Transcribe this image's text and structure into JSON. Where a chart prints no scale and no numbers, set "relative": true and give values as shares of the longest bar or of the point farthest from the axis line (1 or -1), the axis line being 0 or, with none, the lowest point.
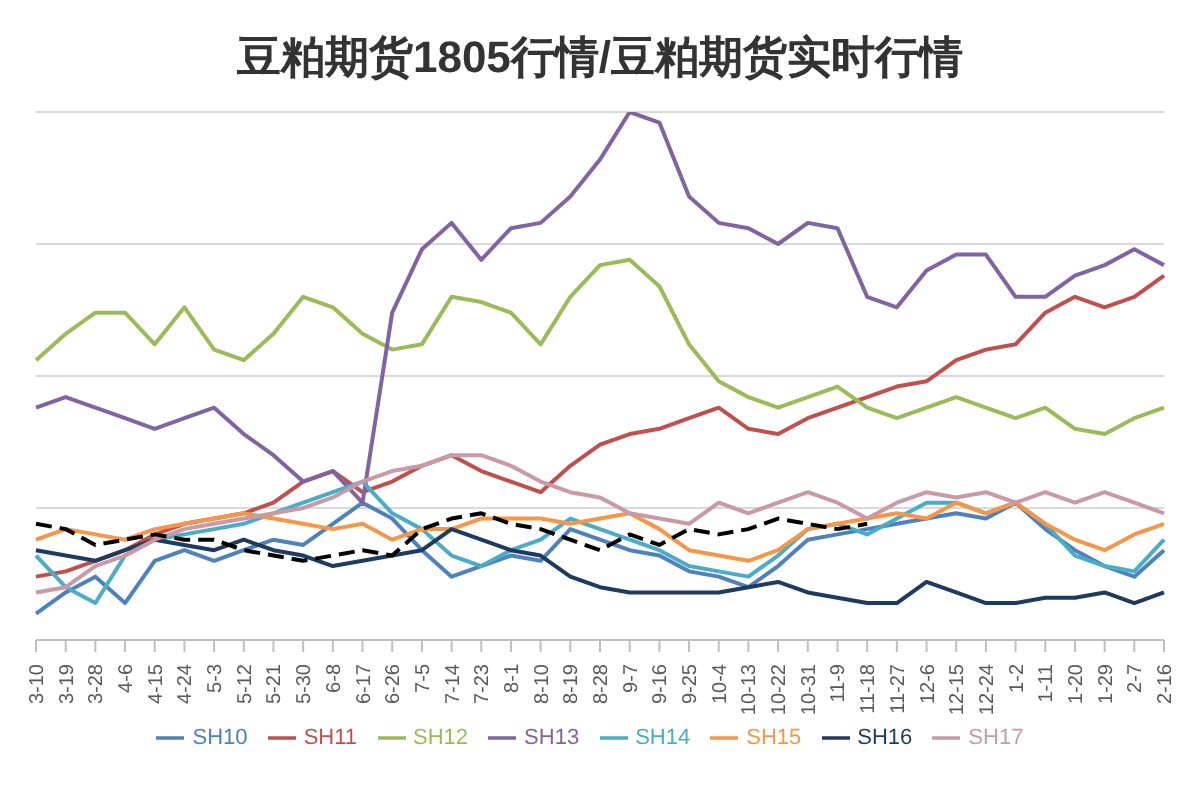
{
  "chart_data": {
    "type": "line",
    "title": "豆粕期货1805行情/豆粕期货实时行情",
    "relative": true,
    "grid": "y",
    "legend": "bottom",
    "marker": "none",
    "categories": [
      "3-10",
      "3-19",
      "3-28",
      "4-6",
      "4-15",
      "4-24",
      "5-3",
      "5-12",
      "5-21",
      "5-30",
      "6-8",
      "6-17",
      "6-26",
      "7-5",
      "7-14",
      "7-23",
      "8-1",
      "8-10",
      "8-19",
      "8-28",
      "9-7",
      "9-16",
      "9-25",
      "10-4",
      "10-13",
      "10-22",
      "10-31",
      "11-9",
      "11-18",
      "11-27",
      "12-6",
      "12-15",
      "12-24",
      "1-2",
      "1-11",
      "1-20",
      "1-29",
      "2-7",
      "2-16"
    ],
    "series": [
      {
        "name": "SH10",
        "color": "#4f81bd",
        "values": [
          0.05,
          0.09,
          0.12,
          0.07,
          0.15,
          0.17,
          0.15,
          0.17,
          0.19,
          0.18,
          0.22,
          0.26,
          0.23,
          0.17,
          0.12,
          0.14,
          0.16,
          0.15,
          0.21,
          0.19,
          0.17,
          0.16,
          0.13,
          0.12,
          0.1,
          0.14,
          0.19,
          0.2,
          0.21,
          0.22,
          0.23,
          0.24,
          0.23,
          0.26,
          0.21,
          0.17,
          0.14,
          0.12,
          0.17
        ]
      },
      {
        "name": "SH11",
        "color": "#c0504d",
        "values": [
          0.12,
          0.13,
          0.15,
          0.17,
          0.2,
          0.22,
          0.23,
          0.24,
          0.26,
          0.3,
          0.32,
          0.28,
          0.3,
          0.33,
          0.35,
          0.32,
          0.3,
          0.28,
          0.33,
          0.37,
          0.39,
          0.4,
          0.42,
          0.44,
          0.4,
          0.39,
          0.42,
          0.44,
          0.46,
          0.48,
          0.49,
          0.53,
          0.55,
          0.56,
          0.62,
          0.65,
          0.63,
          0.65,
          0.69
        ]
      },
      {
        "name": "SH12",
        "color": "#9bbb59",
        "values": [
          0.53,
          0.58,
          0.62,
          0.62,
          0.56,
          0.63,
          0.55,
          0.53,
          0.58,
          0.65,
          0.63,
          0.58,
          0.55,
          0.56,
          0.65,
          0.64,
          0.62,
          0.56,
          0.65,
          0.71,
          0.72,
          0.67,
          0.56,
          0.49,
          0.46,
          0.44,
          0.46,
          0.48,
          0.44,
          0.42,
          0.44,
          0.46,
          0.44,
          0.42,
          0.44,
          0.4,
          0.39,
          0.42,
          0.44
        ]
      },
      {
        "name": "SH13",
        "color": "#8064a2",
        "values": [
          0.44,
          0.46,
          0.44,
          0.42,
          0.4,
          0.42,
          0.44,
          0.39,
          0.35,
          0.3,
          0.32,
          0.26,
          0.62,
          0.74,
          0.79,
          0.72,
          0.78,
          0.79,
          0.84,
          0.91,
          1,
          0.98,
          0.84,
          0.79,
          0.78,
          0.75,
          0.79,
          0.78,
          0.65,
          0.63,
          0.7,
          0.73,
          0.73,
          0.65,
          0.65,
          0.69,
          0.71,
          0.74,
          0.71
        ]
      },
      {
        "name": "SH14",
        "color": "#4bacc6",
        "values": [
          0.16,
          0.1,
          0.07,
          0.16,
          0.19,
          0.2,
          0.21,
          0.22,
          0.24,
          0.26,
          0.28,
          0.3,
          0.24,
          0.21,
          0.16,
          0.14,
          0.17,
          0.19,
          0.23,
          0.21,
          0.19,
          0.17,
          0.14,
          0.13,
          0.12,
          0.16,
          0.21,
          0.22,
          0.2,
          0.23,
          0.26,
          0.26,
          0.24,
          0.26,
          0.22,
          0.16,
          0.14,
          0.13,
          0.19
        ]
      },
      {
        "name": "SH15",
        "color": "#f79646",
        "values": [
          0.19,
          0.21,
          0.2,
          0.19,
          0.21,
          0.22,
          0.23,
          0.24,
          0.23,
          0.22,
          0.21,
          0.22,
          0.19,
          0.21,
          0.21,
          0.23,
          0.23,
          0.23,
          0.22,
          0.23,
          0.24,
          0.21,
          0.17,
          0.16,
          0.15,
          0.17,
          0.21,
          0.22,
          0.23,
          0.24,
          0.23,
          0.26,
          0.24,
          0.26,
          0.22,
          0.19,
          0.17,
          0.2,
          0.22
        ]
      },
      {
        "name": "SH16",
        "color": "#1f3a5f",
        "values": [
          0.17,
          0.16,
          0.15,
          0.17,
          0.19,
          0.18,
          0.17,
          0.19,
          0.17,
          0.16,
          0.14,
          0.15,
          0.16,
          0.17,
          0.21,
          0.19,
          0.17,
          0.16,
          0.12,
          0.1,
          0.09,
          0.09,
          0.09,
          0.09,
          0.1,
          0.11,
          0.09,
          0.08,
          0.07,
          0.07,
          0.11,
          0.09,
          0.07,
          0.07,
          0.08,
          0.08,
          0.09,
          0.07,
          0.09
        ]
      },
      {
        "name": "SH17",
        "color": "#c99aa6",
        "values": [
          0.09,
          0.1,
          0.14,
          0.16,
          0.19,
          0.21,
          0.22,
          0.23,
          0.24,
          0.25,
          0.27,
          0.3,
          0.32,
          0.33,
          0.35,
          0.35,
          0.33,
          0.3,
          0.28,
          0.27,
          0.24,
          0.23,
          0.22,
          0.26,
          0.24,
          0.26,
          0.28,
          0.26,
          0.23,
          0.26,
          0.28,
          0.27,
          0.28,
          0.26,
          0.28,
          0.26,
          0.28,
          0.26,
          0.24
        ]
      },
      {
        "color": "#000000",
        "line_style": "dashed",
        "values": [
          0.22,
          0.21,
          0.18,
          0.19,
          0.2,
          0.19,
          0.19,
          0.17,
          0.16,
          0.15,
          0.16,
          0.17,
          0.16,
          0.21,
          0.23,
          0.24,
          0.22,
          0.21,
          0.19,
          0.17,
          0.2,
          0.18,
          0.21,
          0.2,
          0.21,
          0.23,
          0.22,
          0.21,
          0.22,
          null,
          null,
          null,
          null,
          null,
          null,
          null,
          null,
          null,
          null
        ]
      }
    ]
  }
}
